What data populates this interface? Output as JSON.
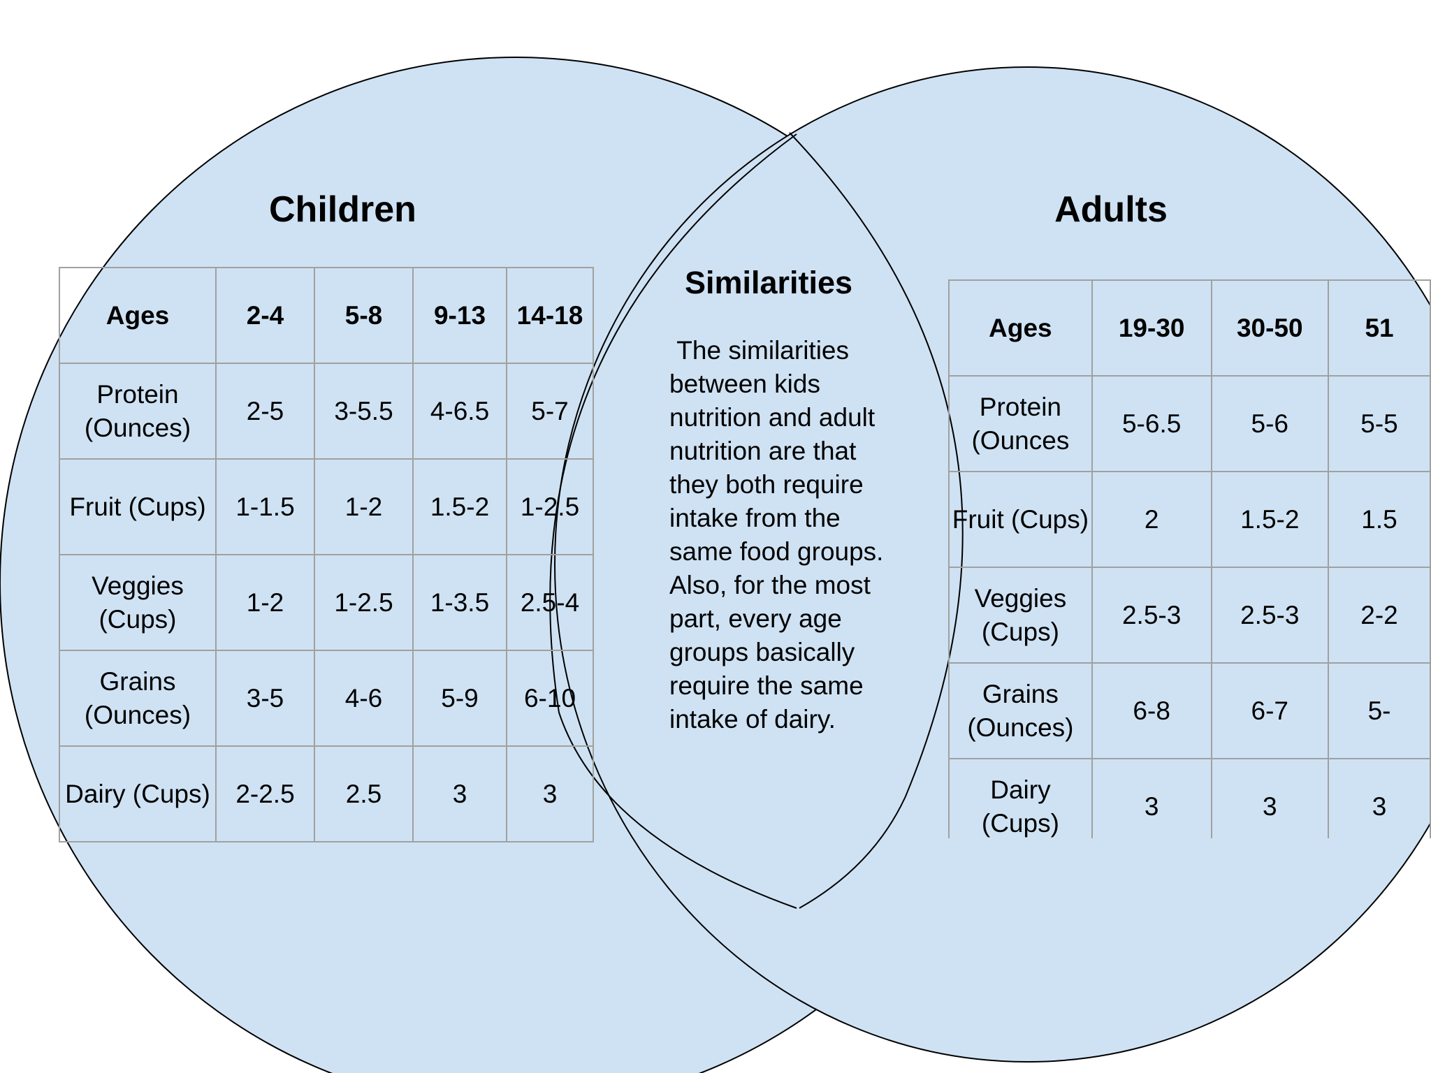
{
  "venn": {
    "left_title": "Children",
    "right_title": "Adults",
    "center_title": "Similarities",
    "center_lines": [
      " The similarities",
      "between kids",
      "nutrition and adult",
      "nutrition are that",
      "they both require",
      "intake from the",
      "same food groups.",
      "Also, for the most",
      "part, every age",
      "groups basically",
      "require the same",
      "intake of dairy."
    ],
    "fill_color": "#cfe2f3",
    "stroke_color": "#000000"
  },
  "children_table": {
    "header": [
      "Ages",
      "2-4",
      "5-8",
      "9-13",
      "14-18"
    ],
    "rows": [
      [
        "Protein (Ounces)",
        "2-5",
        "3-5.5",
        "4-6.5",
        "5-7"
      ],
      [
        "Fruit (Cups)",
        "1-1.5",
        "1-2",
        "1.5-2",
        "1-2.5"
      ],
      [
        "Veggies (Cups)",
        "1-2",
        "1-2.5",
        "1-3.5",
        "2.5-4"
      ],
      [
        "Grains (Ounces)",
        "3-5",
        "4-6",
        "5-9",
        "6-10"
      ],
      [
        "Dairy (Cups)",
        "2-2.5",
        "2.5",
        "3",
        "3"
      ]
    ]
  },
  "adults_table": {
    "header": [
      "Ages",
      "19-30",
      "30-50",
      "51"
    ],
    "rows": [
      [
        "Protein (Ounces",
        "5-6.5",
        "5-6",
        "5-5"
      ],
      [
        "Fruit (Cups)",
        "2",
        "1.5-2",
        "1.5"
      ],
      [
        "Veggies (Cups)",
        "2.5-3",
        "2.5-3",
        "2-2"
      ],
      [
        "Grains (Ounces)",
        "6-8",
        "6-7",
        "5-"
      ],
      [
        "Dairy (Cups)",
        "3",
        "3",
        "3"
      ]
    ]
  }
}
